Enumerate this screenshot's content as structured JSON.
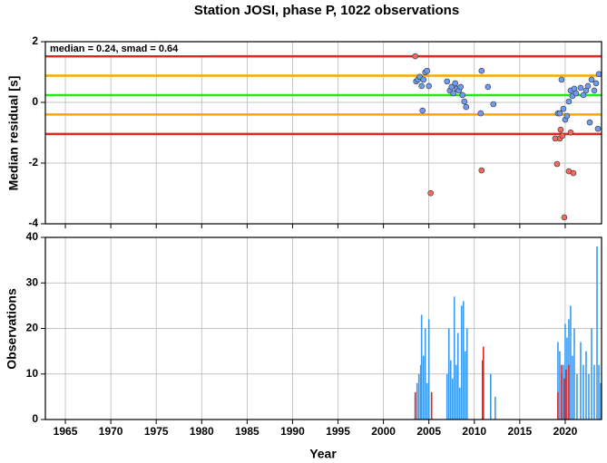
{
  "chart_data": [
    {
      "type": "scatter",
      "title": "Station JOSI, phase P, 1022 observations",
      "ylabel": "Median residual [s]",
      "annotation": "median = 0.24, smad = 0.64",
      "xlim": [
        1962.8,
        2024
      ],
      "ylim": [
        -4,
        2
      ],
      "yticks": [
        -4,
        -2,
        0,
        2
      ],
      "grid": true,
      "hlines": [
        {
          "value": 1.52,
          "color": "#e8241f"
        },
        {
          "value": 0.88,
          "color": "#ffa500"
        },
        {
          "value": 0.24,
          "color": "#22e622"
        },
        {
          "value": -0.4,
          "color": "#ffa500"
        },
        {
          "value": -1.04,
          "color": "#e8241f"
        }
      ],
      "series": [
        {
          "color": "#6e9cf2",
          "x": [
            2003.6,
            2003.8,
            2004.0,
            2004.2,
            2004.4,
            2004.6,
            2004.8,
            2005.0,
            2004.3,
            2007.0,
            2007.3,
            2007.5,
            2007.7,
            2007.9,
            2008.1,
            2008.3,
            2008.5,
            2008.7,
            2008.9,
            2009.1,
            2010.8,
            2010.7,
            2011.5,
            2012.1,
            2019.2,
            2019.4,
            2019.6,
            2019.8,
            2020.0,
            2020.2,
            2020.4,
            2020.6,
            2020.8,
            2021.0,
            2021.2,
            2021.7,
            2022.0,
            2022.3,
            2022.5,
            2022.7,
            2022.9,
            2023.2,
            2023.4,
            2023.6,
            2023.7
          ],
          "values": [
            0.69,
            0.75,
            0.84,
            0.54,
            0.75,
            0.99,
            1.04,
            0.54,
            -0.27,
            0.69,
            0.39,
            0.51,
            0.3,
            0.63,
            0.45,
            0.39,
            0.51,
            0.24,
            0.03,
            -0.15,
            1.04,
            -0.36,
            0.51,
            -0.06,
            -0.36,
            -0.36,
            0.75,
            -0.21,
            -0.57,
            -0.45,
            0.03,
            0.39,
            0.21,
            0.45,
            0.3,
            0.48,
            0.24,
            0.39,
            0.54,
            -0.66,
            0.75,
            0.39,
            0.63,
            -0.87,
            0.93
          ]
        },
        {
          "color": "#f26a5e",
          "x": [
            2003.5,
            2005.2,
            2010.8,
            2019.1,
            2019.4,
            2019.7,
            2019.9,
            2020.4,
            2020.9,
            2020.6,
            2018.9,
            2019.5
          ],
          "values": [
            1.52,
            -2.99,
            -2.24,
            -2.03,
            -1.19,
            -1.1,
            -3.79,
            -2.27,
            -2.33,
            -0.99,
            -1.19,
            -0.9
          ]
        }
      ]
    },
    {
      "type": "bar",
      "xlabel": "Year",
      "ylabel": "Observations",
      "xlim": [
        1962.8,
        2024
      ],
      "ylim": [
        0,
        40
      ],
      "yticks": [
        0,
        10,
        20,
        30,
        40
      ],
      "xticks": [
        1965,
        1970,
        1975,
        1980,
        1985,
        1990,
        1995,
        2000,
        2005,
        2010,
        2015,
        2020
      ],
      "grid": true,
      "series": [
        {
          "color": "#3a9af0",
          "x": [
            2003.5,
            2003.7,
            2003.9,
            2004.1,
            2004.2,
            2004.4,
            2004.6,
            2004.8,
            2005.0,
            2005.3,
            2007.0,
            2007.2,
            2007.4,
            2007.6,
            2007.8,
            2008.0,
            2008.2,
            2008.4,
            2008.6,
            2008.8,
            2009.0,
            2009.2,
            2010.9,
            2011.8,
            2012.3,
            2019.2,
            2019.4,
            2019.6,
            2019.8,
            2020.0,
            2020.2,
            2020.4,
            2020.6,
            2020.8,
            2021.0,
            2021.3,
            2021.7,
            2022.0,
            2022.3,
            2022.6,
            2022.9,
            2023.2,
            2023.5,
            2023.7,
            2023.9
          ],
          "values": [
            5,
            8,
            10,
            12,
            23,
            14,
            20,
            8,
            22,
            6,
            10,
            20,
            13,
            9,
            27,
            12,
            19,
            7,
            25,
            26,
            15,
            20,
            13,
            10,
            5,
            17,
            15,
            10,
            12,
            21,
            18,
            22,
            25,
            14,
            20,
            10,
            17,
            12,
            15,
            10,
            20,
            12,
            38,
            12,
            8
          ]
        },
        {
          "color": "#e8241f",
          "x": [
            2003.5,
            2005.3,
            2010.9,
            2011.0,
            2019.2,
            2019.6,
            2019.9,
            2020.1,
            2020.4
          ],
          "values": [
            6,
            6,
            13,
            16,
            6,
            12,
            9,
            11,
            12
          ]
        }
      ]
    }
  ]
}
